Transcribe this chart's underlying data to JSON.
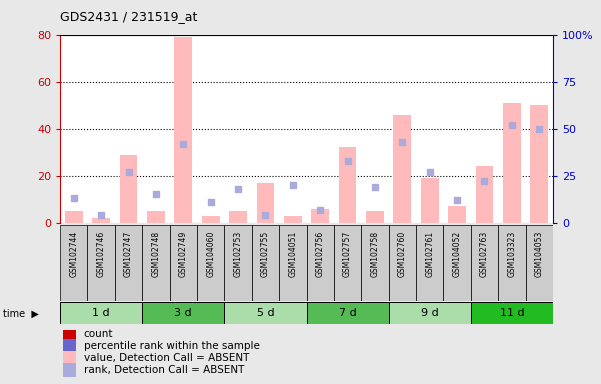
{
  "title": "GDS2431 / 231519_at",
  "samples": [
    "GSM102744",
    "GSM102746",
    "GSM102747",
    "GSM102748",
    "GSM102749",
    "GSM104060",
    "GSM102753",
    "GSM102755",
    "GSM104051",
    "GSM102756",
    "GSM102757",
    "GSM102758",
    "GSM102760",
    "GSM102761",
    "GSM104052",
    "GSM102763",
    "GSM103323",
    "GSM104053"
  ],
  "groups": [
    {
      "label": "1 d",
      "indices": [
        0,
        1,
        2
      ],
      "color": "#aaddaa"
    },
    {
      "label": "3 d",
      "indices": [
        3,
        4,
        5
      ],
      "color": "#55bb55"
    },
    {
      "label": "5 d",
      "indices": [
        6,
        7,
        8
      ],
      "color": "#aaddaa"
    },
    {
      "label": "7 d",
      "indices": [
        9,
        10,
        11
      ],
      "color": "#55bb55"
    },
    {
      "label": "9 d",
      "indices": [
        12,
        13,
        14
      ],
      "color": "#aaddaa"
    },
    {
      "label": "11 d",
      "indices": [
        15,
        16,
        17
      ],
      "color": "#22bb22"
    }
  ],
  "absent_bar_values": [
    5,
    2,
    29,
    5,
    79,
    3,
    5,
    17,
    3,
    6,
    32,
    5,
    46,
    19,
    7,
    24,
    51,
    50
  ],
  "absent_rank_values": [
    13,
    4,
    27,
    15,
    42,
    11,
    18,
    4,
    20,
    7,
    33,
    19,
    43,
    27,
    12,
    22,
    52,
    50
  ],
  "ylim_left": [
    0,
    80
  ],
  "ylim_right": [
    0,
    100
  ],
  "yticks_left": [
    0,
    20,
    40,
    60,
    80
  ],
  "ytick_labels_left": [
    "0",
    "20",
    "40",
    "60",
    "80"
  ],
  "yticks_right_vals": [
    0,
    25,
    50,
    75,
    100
  ],
  "ytick_labels_right": [
    "0",
    "25",
    "50",
    "75",
    "100%"
  ],
  "bar_color_absent_val": "#ffbbbb",
  "bar_color_absent_rank": "#aaaadd",
  "left_tick_color": "#cc0000",
  "right_tick_color": "#0000cc",
  "sample_box_color": "#cccccc",
  "plot_bg": "#ffffff",
  "fig_bg": "#e8e8e8",
  "legend": [
    {
      "color": "#cc0000",
      "marker": "s",
      "label": "count"
    },
    {
      "color": "#6666cc",
      "marker": "s",
      "label": "percentile rank within the sample"
    },
    {
      "color": "#ffbbbb",
      "marker": "s",
      "label": "value, Detection Call = ABSENT"
    },
    {
      "color": "#aaaadd",
      "marker": "s",
      "label": "rank, Detection Call = ABSENT"
    }
  ]
}
